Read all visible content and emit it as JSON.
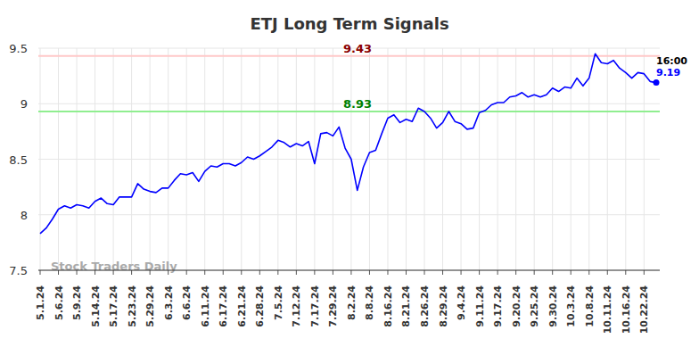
{
  "chart_data": {
    "type": "line",
    "title": "ETJ Long Term Signals",
    "categories": [
      "5.1.24",
      null,
      null,
      "5.6.24",
      null,
      null,
      "5.9.24",
      null,
      null,
      "5.14.24",
      null,
      null,
      "5.17.24",
      null,
      null,
      "5.23.24",
      null,
      null,
      "5.29.24",
      null,
      null,
      "6.3.24",
      null,
      null,
      "6.6.24",
      null,
      null,
      "6.11.24",
      null,
      null,
      "6.17.24",
      null,
      null,
      "6.21.24",
      null,
      null,
      "6.28.24",
      null,
      null,
      "7.5.24",
      null,
      null,
      "7.12.24",
      null,
      null,
      "7.17.24",
      null,
      null,
      "7.29.24",
      null,
      null,
      "8.2.24",
      null,
      null,
      "8.8.24",
      null,
      null,
      "8.16.24",
      null,
      null,
      "8.21.24",
      null,
      null,
      "8.26.24",
      null,
      null,
      "8.29.24",
      null,
      null,
      "9.4.24",
      null,
      null,
      "9.11.24",
      null,
      null,
      "9.17.24",
      null,
      null,
      "9.20.24",
      null,
      null,
      "9.25.24",
      null,
      null,
      "9.30.24",
      null,
      null,
      "10.3.24",
      null,
      null,
      "10.8.24",
      null,
      null,
      "10.11.24",
      null,
      null,
      "10.16.24",
      null,
      null,
      "10.22.24",
      null,
      null
    ],
    "series": [
      {
        "color": "#0000ff",
        "values": [
          7.83,
          7.88,
          7.96,
          8.05,
          8.08,
          8.06,
          8.09,
          8.08,
          8.06,
          8.12,
          8.15,
          8.1,
          8.09,
          8.16,
          8.16,
          8.16,
          8.28,
          8.23,
          8.21,
          8.2,
          8.24,
          8.24,
          8.31,
          8.37,
          8.36,
          8.38,
          8.3,
          8.39,
          8.44,
          8.43,
          8.46,
          8.46,
          8.44,
          8.47,
          8.52,
          8.5,
          8.53,
          8.57,
          8.61,
          8.67,
          8.65,
          8.61,
          8.64,
          8.62,
          8.66,
          8.46,
          8.73,
          8.74,
          8.71,
          8.79,
          8.6,
          8.5,
          8.22,
          8.43,
          8.56,
          8.58,
          8.73,
          8.87,
          8.9,
          8.83,
          8.86,
          8.84,
          8.96,
          8.93,
          8.87,
          8.78,
          8.83,
          8.93,
          8.84,
          8.82,
          8.77,
          8.78,
          8.92,
          8.94,
          8.99,
          9.01,
          9.01,
          9.06,
          9.07,
          9.1,
          9.06,
          9.08,
          9.06,
          9.08,
          9.14,
          9.11,
          9.15,
          9.14,
          9.23,
          9.16,
          9.23,
          9.45,
          9.37,
          9.36,
          9.39,
          9.32,
          9.28,
          9.23,
          9.28,
          9.27,
          9.2,
          9.19
        ]
      }
    ],
    "ylim": [
      7.5,
      9.5
    ],
    "yticks": [
      7.5,
      8,
      8.5,
      9,
      9.5
    ],
    "grid": true,
    "reference_lines": [
      {
        "value": 9.43,
        "label": "9.43",
        "color": "#ffc8c8",
        "label_color": "#8b0000"
      },
      {
        "value": 8.93,
        "label": "8.93",
        "color": "#90ee90",
        "label_color": "#008000"
      }
    ],
    "end_label": {
      "time": "16:00",
      "value_label": "9.19",
      "color": "#0000ff"
    },
    "watermark": "Stock Traders Daily"
  }
}
